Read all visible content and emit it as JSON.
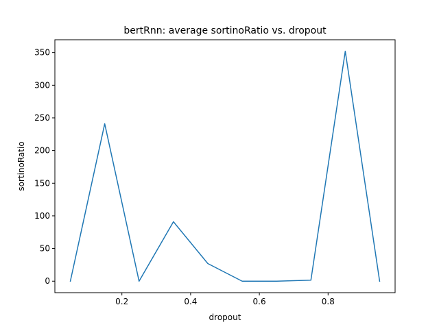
{
  "chart_data": {
    "type": "line",
    "title": "bertRnn: average sortinoRatio vs. dropout",
    "xlabel": "dropout",
    "ylabel": "sortinoRatio",
    "xlim": [
      0.005,
      0.995
    ],
    "ylim": [
      -17.6,
      369.6
    ],
    "xticks": [
      0.2,
      0.4,
      0.6,
      0.8
    ],
    "xtick_labels": [
      "0.2",
      "0.4",
      "0.6",
      "0.8"
    ],
    "yticks": [
      0,
      50,
      100,
      150,
      200,
      250,
      300,
      350
    ],
    "ytick_labels": [
      "0",
      "50",
      "100",
      "150",
      "200",
      "250",
      "300",
      "350"
    ],
    "grid": false,
    "series": [
      {
        "color": "#1f77b4",
        "x": [
          0.05,
          0.15,
          0.25,
          0.35,
          0.45,
          0.55,
          0.65,
          0.75,
          0.85,
          0.95
        ],
        "y": [
          0,
          241,
          0,
          91,
          27,
          0,
          0,
          1.5,
          352,
          0
        ]
      }
    ]
  }
}
